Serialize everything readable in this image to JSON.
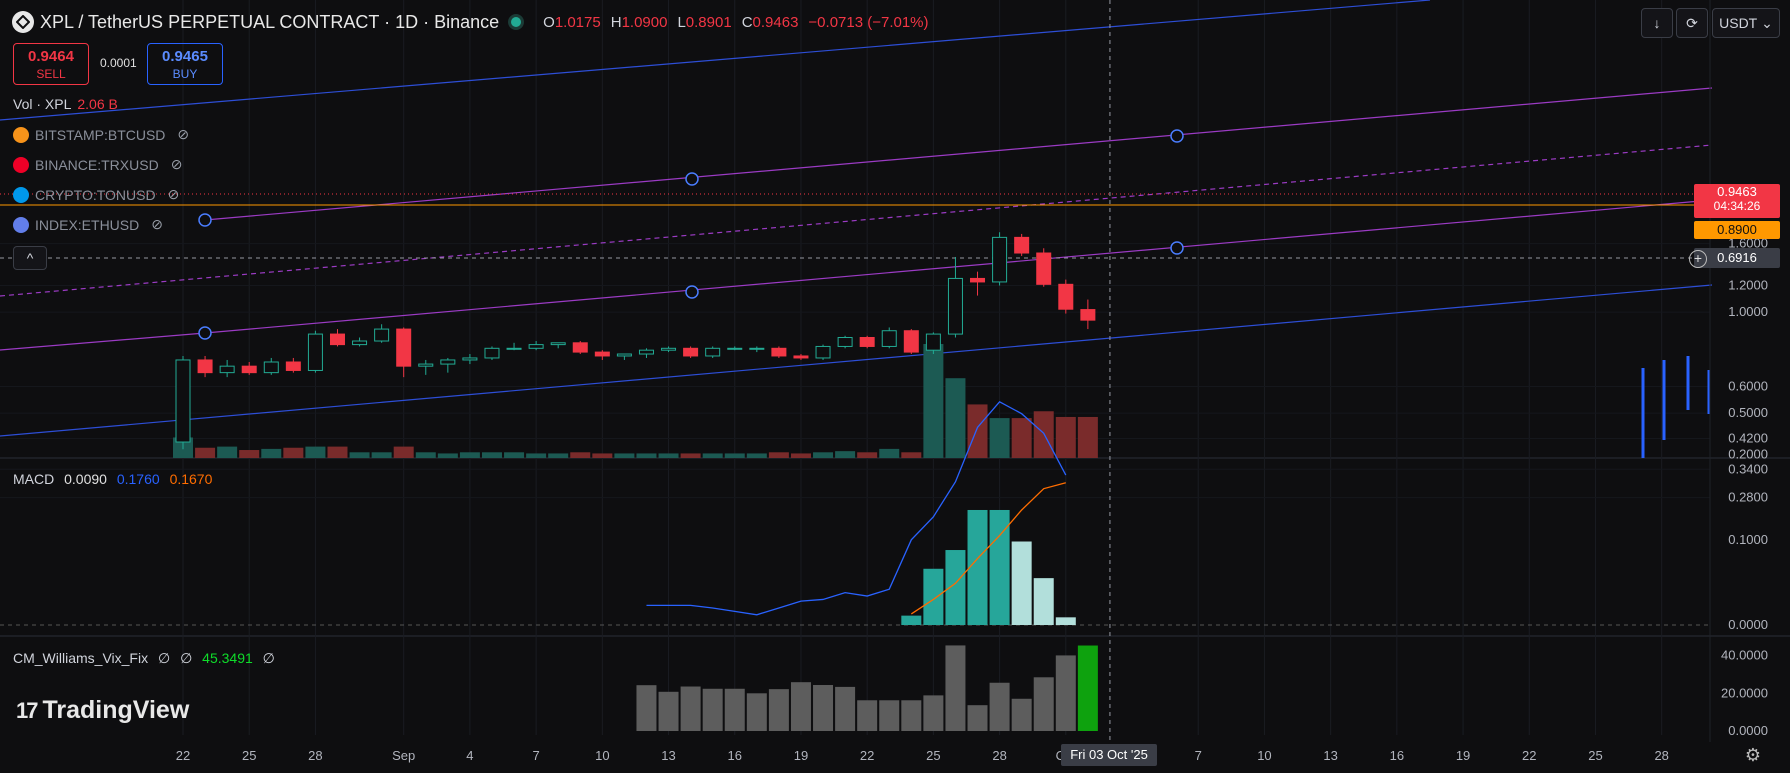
{
  "header": {
    "title": "XPL / TetherUS PERPETUAL CONTRACT · 1D · Binance",
    "o_label": "O",
    "o": "1.0175",
    "h_label": "H",
    "h": "1.0900",
    "l_label": "L",
    "l": "0.8901",
    "c_label": "C",
    "c": "0.9463",
    "change": "−0.0713 (−7.01%)"
  },
  "trade": {
    "sell_price": "0.9464",
    "sell_label": "SELL",
    "spread": "0.0001",
    "buy_price": "0.9465",
    "buy_label": "BUY"
  },
  "toolbar": {
    "currency": "USDT"
  },
  "volume_legend": {
    "label": "Vol · XPL",
    "value": "2.06 B"
  },
  "compare_symbols": [
    {
      "label": "BITSTAMP:BTCUSD",
      "color": "#f7931a",
      "icon": "bitcoin-icon"
    },
    {
      "label": "BINANCE:TRXUSD",
      "color": "#ef0027",
      "icon": "tron-icon"
    },
    {
      "label": "CRYPTO:TONUSD",
      "color": "#0098ea",
      "icon": "ton-icon"
    },
    {
      "label": "INDEX:ETHUSD",
      "color": "#627eea",
      "icon": "ethereum-icon"
    }
  ],
  "macd_legend": {
    "label": "MACD",
    "hist": "0.0090",
    "macd": "0.1760",
    "signal": "0.1670"
  },
  "vix_legend": {
    "label": "CM_Williams_Vix_Fix",
    "v1": "∅",
    "v2": "∅",
    "value": "45.3491",
    "v4": "∅"
  },
  "brand": "TradingView",
  "crosshair": {
    "date_label": "Fri 03 Oct '25",
    "price_label": "0.6916"
  },
  "price_badges": {
    "last": "0.9463",
    "countdown": "04:34:26",
    "alert": "0.8900"
  },
  "chart_data": [
    {
      "type": "candlestick",
      "symbol": "XPL / TetherUS PERPETUAL CONTRACT",
      "interval": "1D",
      "scale": "log",
      "y_ticks": [
        "1.6000",
        "1.2000",
        "1.0000",
        "0.6000",
        "0.5000",
        "0.4200",
        "0.3400",
        "0.2800"
      ],
      "x_ticks": [
        "22",
        "25",
        "28",
        "Sep",
        "4",
        "7",
        "10",
        "13",
        "16",
        "19",
        "22",
        "25",
        "28",
        "Oct",
        "7",
        "10",
        "13",
        "16",
        "19",
        "22",
        "25",
        "28"
      ],
      "candles": [
        {
          "date": "2025-08-22",
          "open": 0.41,
          "high": 0.74,
          "low": 0.39,
          "close": 0.72
        },
        {
          "date": "2025-08-23",
          "open": 0.72,
          "high": 0.74,
          "low": 0.64,
          "close": 0.66
        },
        {
          "date": "2025-08-24",
          "open": 0.66,
          "high": 0.72,
          "low": 0.64,
          "close": 0.69
        },
        {
          "date": "2025-08-25",
          "open": 0.69,
          "high": 0.71,
          "low": 0.65,
          "close": 0.66
        },
        {
          "date": "2025-08-26",
          "open": 0.66,
          "high": 0.73,
          "low": 0.65,
          "close": 0.71
        },
        {
          "date": "2025-08-27",
          "open": 0.71,
          "high": 0.73,
          "low": 0.66,
          "close": 0.67
        },
        {
          "date": "2025-08-28",
          "open": 0.67,
          "high": 0.88,
          "low": 0.66,
          "close": 0.86
        },
        {
          "date": "2025-08-29",
          "open": 0.86,
          "high": 0.89,
          "low": 0.79,
          "close": 0.8
        },
        {
          "date": "2025-08-30",
          "open": 0.8,
          "high": 0.84,
          "low": 0.79,
          "close": 0.82
        },
        {
          "date": "2025-08-31",
          "open": 0.82,
          "high": 0.92,
          "low": 0.81,
          "close": 0.89
        },
        {
          "date": "2025-09-01",
          "open": 0.89,
          "high": 0.9,
          "low": 0.64,
          "close": 0.69
        },
        {
          "date": "2025-09-02",
          "open": 0.69,
          "high": 0.72,
          "low": 0.65,
          "close": 0.7
        },
        {
          "date": "2025-09-03",
          "open": 0.7,
          "high": 0.73,
          "low": 0.66,
          "close": 0.72
        },
        {
          "date": "2025-09-04",
          "open": 0.72,
          "high": 0.75,
          "low": 0.7,
          "close": 0.73
        },
        {
          "date": "2025-09-05",
          "open": 0.73,
          "high": 0.79,
          "low": 0.72,
          "close": 0.78
        },
        {
          "date": "2025-09-06",
          "open": 0.78,
          "high": 0.81,
          "low": 0.77,
          "close": 0.78
        },
        {
          "date": "2025-09-07",
          "open": 0.78,
          "high": 0.82,
          "low": 0.77,
          "close": 0.8
        },
        {
          "date": "2025-09-08",
          "open": 0.8,
          "high": 0.81,
          "low": 0.78,
          "close": 0.81
        },
        {
          "date": "2025-09-09",
          "open": 0.81,
          "high": 0.82,
          "low": 0.75,
          "close": 0.76
        },
        {
          "date": "2025-09-10",
          "open": 0.76,
          "high": 0.77,
          "low": 0.72,
          "close": 0.74
        },
        {
          "date": "2025-09-11",
          "open": 0.74,
          "high": 0.75,
          "low": 0.72,
          "close": 0.75
        },
        {
          "date": "2025-09-12",
          "open": 0.75,
          "high": 0.78,
          "low": 0.73,
          "close": 0.77
        },
        {
          "date": "2025-09-13",
          "open": 0.77,
          "high": 0.79,
          "low": 0.76,
          "close": 0.78
        },
        {
          "date": "2025-09-14",
          "open": 0.78,
          "high": 0.79,
          "low": 0.73,
          "close": 0.74
        },
        {
          "date": "2025-09-15",
          "open": 0.74,
          "high": 0.79,
          "low": 0.73,
          "close": 0.78
        },
        {
          "date": "2025-09-16",
          "open": 0.78,
          "high": 0.79,
          "low": 0.77,
          "close": 0.78
        },
        {
          "date": "2025-09-17",
          "open": 0.78,
          "high": 0.79,
          "low": 0.76,
          "close": 0.78
        },
        {
          "date": "2025-09-18",
          "open": 0.78,
          "high": 0.79,
          "low": 0.73,
          "close": 0.74
        },
        {
          "date": "2025-09-19",
          "open": 0.74,
          "high": 0.75,
          "low": 0.72,
          "close": 0.73
        },
        {
          "date": "2025-09-20",
          "open": 0.73,
          "high": 0.8,
          "low": 0.72,
          "close": 0.79
        },
        {
          "date": "2025-09-21",
          "open": 0.79,
          "high": 0.85,
          "low": 0.78,
          "close": 0.84
        },
        {
          "date": "2025-09-22",
          "open": 0.84,
          "high": 0.85,
          "low": 0.78,
          "close": 0.79
        },
        {
          "date": "2025-09-23",
          "open": 0.79,
          "high": 0.9,
          "low": 0.78,
          "close": 0.88
        },
        {
          "date": "2025-09-24",
          "open": 0.88,
          "high": 0.89,
          "low": 0.75,
          "close": 0.76
        },
        {
          "date": "2025-09-25",
          "open": 0.77,
          "high": 0.87,
          "low": 0.75,
          "close": 0.86
        },
        {
          "date": "2025-09-26",
          "open": 0.86,
          "high": 1.46,
          "low": 0.84,
          "close": 1.26
        },
        {
          "date": "2025-09-27",
          "open": 1.26,
          "high": 1.32,
          "low": 1.12,
          "close": 1.23
        },
        {
          "date": "2025-09-28",
          "open": 1.23,
          "high": 1.73,
          "low": 1.2,
          "close": 1.67
        },
        {
          "date": "2025-09-29",
          "open": 1.67,
          "high": 1.71,
          "low": 1.47,
          "close": 1.5
        },
        {
          "date": "2025-09-30",
          "open": 1.5,
          "high": 1.55,
          "low": 1.19,
          "close": 1.21
        },
        {
          "date": "2025-10-01",
          "open": 1.21,
          "high": 1.25,
          "low": 0.99,
          "close": 1.02
        },
        {
          "date": "2025-10-02",
          "open": 1.0175,
          "high": 1.09,
          "low": 0.8901,
          "close": 0.9463
        }
      ],
      "volume_direction": [
        "up",
        "down",
        "up",
        "down",
        "up",
        "down",
        "up",
        "down",
        "up",
        "up",
        "down",
        "up",
        "up",
        "up",
        "up",
        "up",
        "up",
        "up",
        "down",
        "down",
        "up",
        "up",
        "up",
        "down",
        "up",
        "up",
        "up",
        "down",
        "down",
        "up",
        "up",
        "down",
        "up",
        "down",
        "up",
        "up",
        "down",
        "up",
        "down",
        "down",
        "down",
        "down"
      ],
      "volume_relative": [
        0.18,
        0.09,
        0.1,
        0.07,
        0.08,
        0.09,
        0.1,
        0.1,
        0.05,
        0.05,
        0.1,
        0.05,
        0.04,
        0.05,
        0.05,
        0.05,
        0.04,
        0.04,
        0.05,
        0.04,
        0.04,
        0.04,
        0.04,
        0.04,
        0.04,
        0.04,
        0.04,
        0.05,
        0.04,
        0.05,
        0.06,
        0.05,
        0.08,
        0.05,
        1.0,
        0.7,
        0.47,
        0.35,
        0.35,
        0.41,
        0.36,
        0.36
      ]
    },
    {
      "type": "line+histogram",
      "name": "MACD",
      "y_ticks": [
        "0.2000",
        "0.1000",
        "0.0000"
      ],
      "start_date": "2025-09-12",
      "macd": [
        0.023,
        0.023,
        0.023,
        0.02,
        0.016,
        0.012,
        0.02,
        0.028,
        0.03,
        0.038,
        0.034,
        0.042,
        0.1,
        0.127,
        0.168,
        0.232,
        0.262,
        0.248,
        0.225,
        0.176
      ],
      "signal_start_date": "2025-09-24",
      "signal": [
        0.013,
        0.03,
        0.049,
        0.078,
        0.105,
        0.135,
        0.16,
        0.167
      ],
      "histogram_start_date": "2025-09-24",
      "histogram": [
        0.011,
        0.066,
        0.088,
        0.135,
        0.135,
        0.098,
        0.055,
        0.009
      ]
    },
    {
      "type": "bar",
      "name": "CM_Williams_Vix_Fix",
      "y_ticks": [
        "40.0000",
        "20.0000",
        "0.0000"
      ],
      "start_date": "2025-09-12",
      "values": [
        24.3,
        20.8,
        23.6,
        22.4,
        22.4,
        20.0,
        22.2,
        25.9,
        24.4,
        23.4,
        16.3,
        16.3,
        16.3,
        18.9,
        45.4,
        13.7,
        25.6,
        17.1,
        28.5,
        40.1,
        45.3491
      ],
      "last_color": "#0ea20e"
    }
  ]
}
